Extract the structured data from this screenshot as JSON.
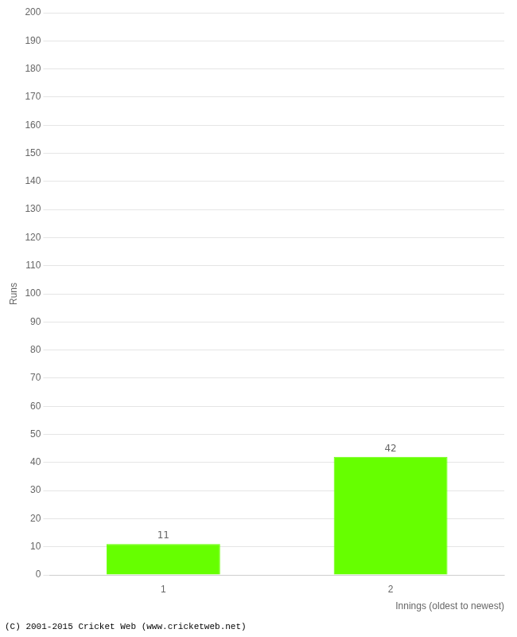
{
  "chart_data": {
    "type": "bar",
    "categories": [
      "1",
      "2"
    ],
    "values": [
      11,
      42
    ],
    "color": "#66ff00",
    "xlabel": "Innings (oldest to newest)",
    "ylabel": "Runs",
    "ylim": [
      0,
      200
    ],
    "yticks": [
      0,
      10,
      20,
      30,
      40,
      50,
      60,
      70,
      80,
      90,
      100,
      110,
      120,
      130,
      140,
      150,
      160,
      170,
      180,
      190,
      200
    ],
    "grid": true,
    "data_labels": true,
    "footer": "(C) 2001-2015 Cricket Web (www.cricketweb.net)"
  }
}
